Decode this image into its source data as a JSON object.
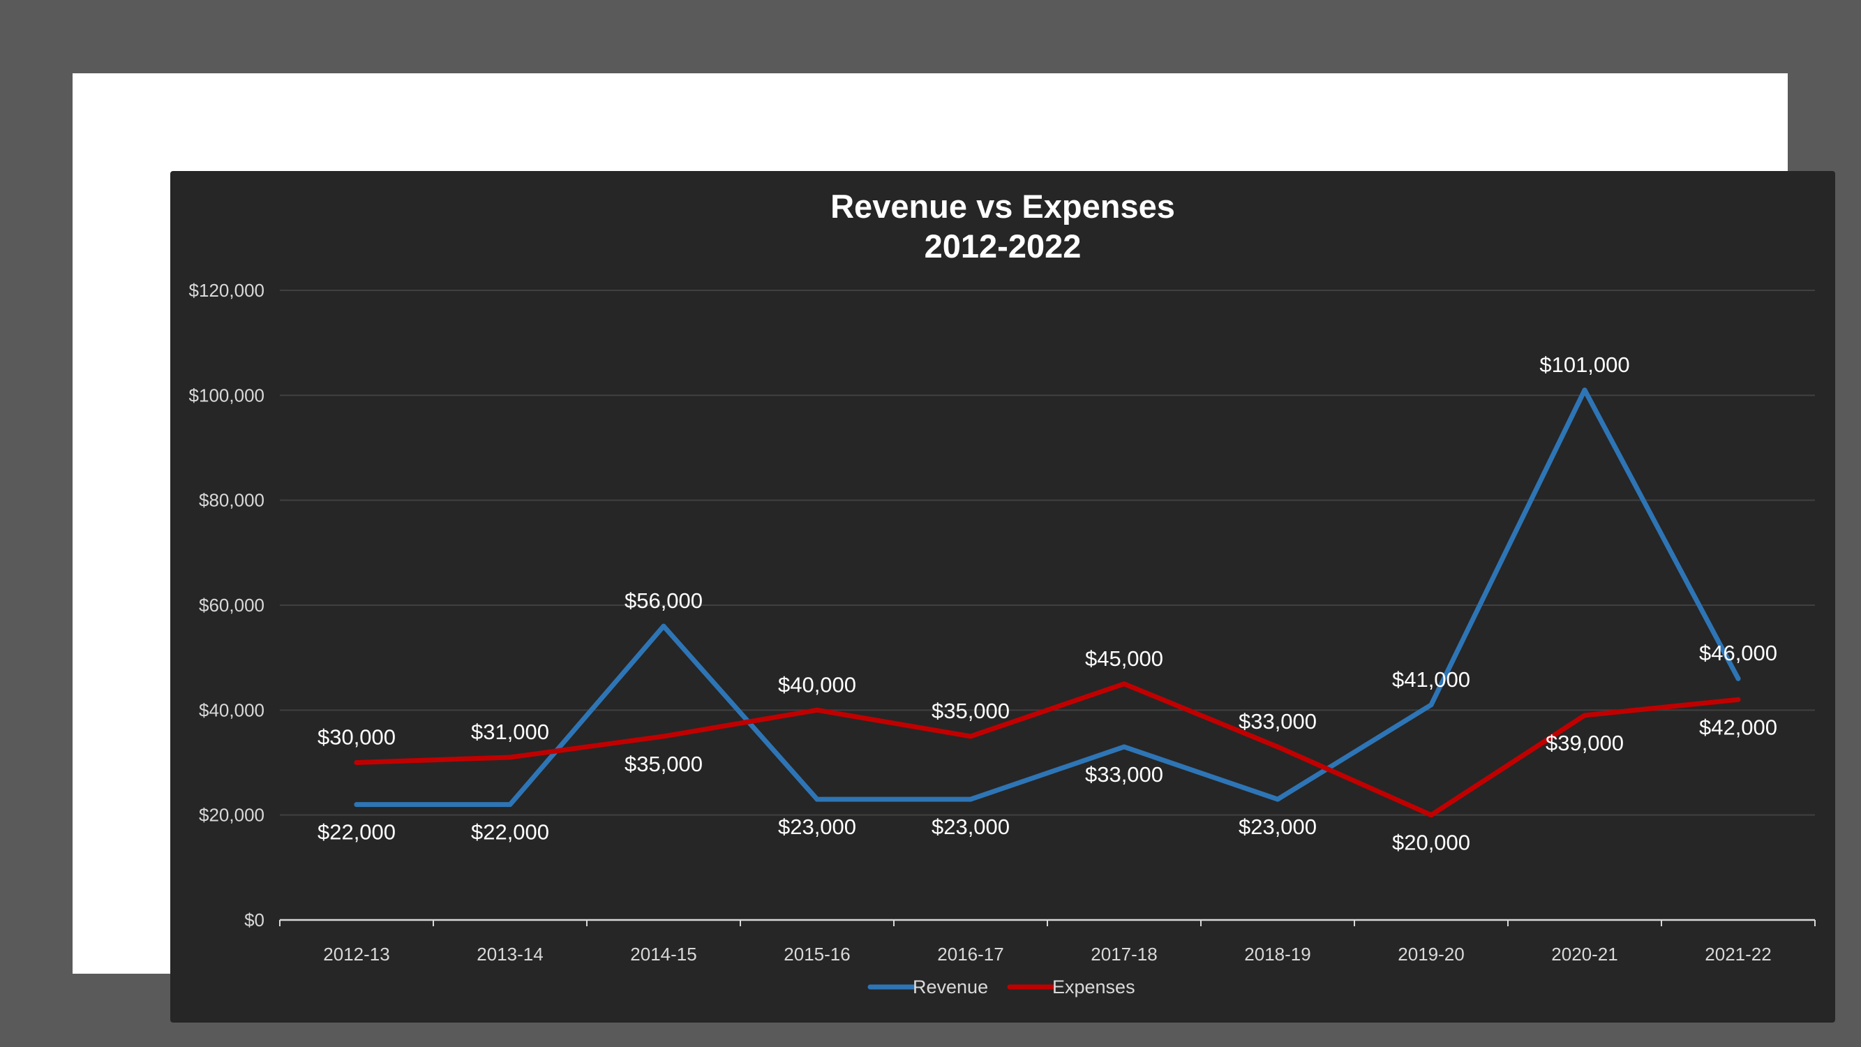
{
  "chart_data": {
    "type": "line",
    "title": "Revenue vs Expenses",
    "subtitle": "2012-2022",
    "categories": [
      "2012-13",
      "2013-14",
      "2014-15",
      "2015-16",
      "2016-17",
      "2017-18",
      "2018-19",
      "2019-20",
      "2020-21",
      "2021-22"
    ],
    "series": [
      {
        "name": "Revenue",
        "color": "#2e75b6",
        "values": [
          22000,
          22000,
          56000,
          23000,
          23000,
          33000,
          23000,
          41000,
          101000,
          46000
        ],
        "labels": [
          "$22,000",
          "$22,000",
          "$56,000",
          "$23,000",
          "$23,000",
          "$33,000",
          "$23,000",
          "$41,000",
          "$101,000",
          "$46,000"
        ],
        "label_pos": [
          "below",
          "below",
          "above",
          "below",
          "below",
          "below",
          "below",
          "above",
          "above",
          "above"
        ]
      },
      {
        "name": "Expenses",
        "color": "#c00000",
        "values": [
          30000,
          31000,
          35000,
          40000,
          35000,
          45000,
          33000,
          20000,
          39000,
          42000
        ],
        "labels": [
          "$30,000",
          "$31,000",
          "$35,000",
          "$40,000",
          "$35,000",
          "$45,000",
          "$33,000",
          "$20,000",
          "$39,000",
          "$42,000"
        ],
        "label_pos": [
          "above",
          "above",
          "below",
          "above",
          "above",
          "above",
          "above",
          "below",
          "below",
          "below"
        ]
      }
    ],
    "ylim": [
      0,
      120000
    ],
    "yticks": [
      0,
      20000,
      40000,
      60000,
      80000,
      100000,
      120000
    ],
    "ytick_labels": [
      "$0",
      "$20,000",
      "$40,000",
      "$60,000",
      "$80,000",
      "$100,000",
      "$120,000"
    ],
    "grid": true,
    "legend": "bottom",
    "background": "#262626",
    "gridline_color": "#404040",
    "axis_color": "#d9d9d9"
  }
}
